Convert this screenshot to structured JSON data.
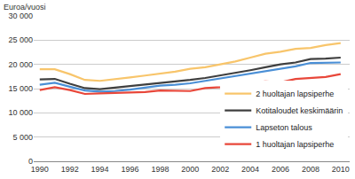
{
  "chart_data": {
    "type": "line",
    "ylabel": "Euroa/vuosi",
    "x": [
      1990,
      1991,
      1992,
      1993,
      1994,
      1995,
      1996,
      1997,
      1998,
      1999,
      2000,
      2001,
      2002,
      2003,
      2004,
      2005,
      2006,
      2007,
      2008,
      2009,
      2010
    ],
    "series": [
      {
        "name": "2 huoltajan lapsiperhe",
        "color": "#f8c56b",
        "values": [
          19000,
          19000,
          18000,
          16800,
          16600,
          16900,
          17300,
          17700,
          18100,
          18500,
          19100,
          19400,
          20000,
          20600,
          21400,
          22200,
          22600,
          23200,
          23400,
          24000,
          24400
        ]
      },
      {
        "name": "Kotitaloudet keskimäärin",
        "color": "#3f3f3f",
        "values": [
          16900,
          17000,
          16000,
          15100,
          14900,
          15200,
          15500,
          15800,
          16200,
          16500,
          16800,
          17200,
          17700,
          18200,
          18800,
          19400,
          20000,
          20400,
          21100,
          21200,
          21400
        ]
      },
      {
        "name": "Lapseton talous",
        "color": "#4a8fd6",
        "values": [
          15800,
          16200,
          15400,
          14600,
          14400,
          14500,
          14800,
          15200,
          15600,
          15800,
          16100,
          16600,
          17100,
          17600,
          18200,
          18700,
          19200,
          19600,
          20300,
          20300,
          20400
        ]
      },
      {
        "name": "1 huoltajan lapsiperhe",
        "color": "#e8473a",
        "values": [
          14700,
          15300,
          14700,
          13900,
          14000,
          14100,
          14300,
          14300,
          14600,
          14600,
          14500,
          15100,
          15300,
          15700,
          16200,
          16500,
          16300,
          17000,
          17200,
          17400,
          18000
        ]
      }
    ],
    "xlim": [
      1989.6,
      2010.6
    ],
    "xticks": [
      1990,
      1992,
      1994,
      1996,
      1998,
      2000,
      2002,
      2004,
      2006,
      2008,
      2010
    ],
    "ylim": [
      0,
      30000
    ],
    "yticks": [
      0,
      {
        "value": 5000,
        "label": "5 000"
      },
      {
        "value": 10000,
        "label": "10 000"
      },
      {
        "value": 15000,
        "label": "15 000"
      },
      {
        "value": 20000,
        "label": "20 000"
      },
      {
        "value": 25000,
        "label": "25 000"
      },
      {
        "value": 30000,
        "label": "30 000"
      }
    ],
    "grid": true,
    "legend": "lower right"
  }
}
